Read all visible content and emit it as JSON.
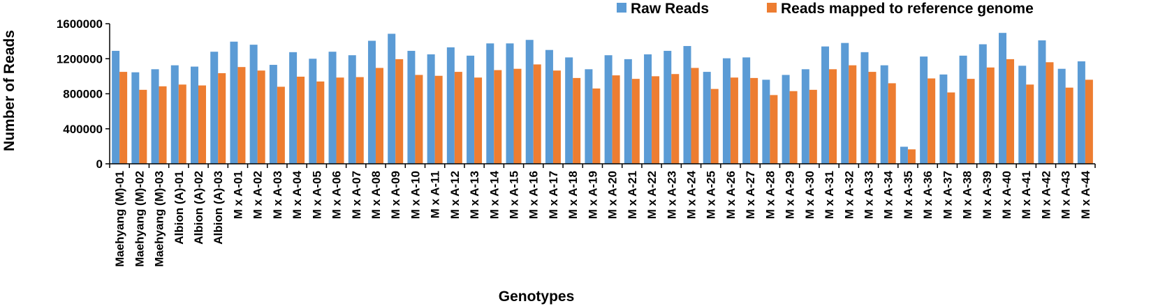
{
  "chart_data": {
    "type": "bar",
    "title": "",
    "xlabel": "Genotypes",
    "ylabel": "Number of Reads",
    "ylim": [
      0,
      1600000
    ],
    "yticks": [
      0,
      400000,
      800000,
      1200000,
      1600000
    ],
    "ytick_labels": [
      "0",
      "400000",
      "800000",
      "1200000",
      "1600000"
    ],
    "grid": false,
    "legend_position": "top-right",
    "categories": [
      "Maehyang (M)-01",
      "Maehyang (M)-02",
      "Maehyang (M)-03",
      "Albion (A)-01",
      "Albion (A)-02",
      "Albion (A)-03",
      "M x A-01",
      "M x A-02",
      "M x A-03",
      "M x A-04",
      "M x A-05",
      "M x A-06",
      "M x A-07",
      "M x A-08",
      "M x A-09",
      "M x A-10",
      "M x A-11",
      "M x A-12",
      "M x A-13",
      "M x A-14",
      "M x A-15",
      "M x A-16",
      "M x A-17",
      "M x A-18",
      "M x A-19",
      "M x A-20",
      "M x A-21",
      "M x A-22",
      "M x A-23",
      "M x A-24",
      "M x A-25",
      "M x A-26",
      "M x A-27",
      "M x A-28",
      "M x A-29",
      "M x A-30",
      "M x A-31",
      "M x A-32",
      "M x A-33",
      "M x A-34",
      "M x A-35",
      "M x A-36",
      "M x A-37",
      "M x A-38",
      "M x A-39",
      "M x A-40",
      "M x A-41",
      "M x A-42",
      "M x A-43",
      "M x A-44"
    ],
    "series": [
      {
        "name": "Raw Reads",
        "color": "#5B9BD5",
        "values": [
          1290000,
          1045000,
          1080000,
          1125000,
          1110000,
          1280000,
          1395000,
          1360000,
          1130000,
          1275000,
          1200000,
          1280000,
          1240000,
          1405000,
          1485000,
          1290000,
          1250000,
          1330000,
          1235000,
          1375000,
          1375000,
          1415000,
          1300000,
          1215000,
          1080000,
          1240000,
          1195000,
          1250000,
          1290000,
          1345000,
          1050000,
          1205000,
          1215000,
          960000,
          1015000,
          1080000,
          1340000,
          1380000,
          1275000,
          1125000,
          195000,
          1225000,
          1020000,
          1235000,
          1365000,
          1495000,
          1120000,
          1410000,
          1085000,
          1170000
        ]
      },
      {
        "name": "Reads mapped to reference genome",
        "color": "#ED7D31",
        "values": [
          1050000,
          845000,
          885000,
          905000,
          895000,
          1035000,
          1105000,
          1065000,
          880000,
          995000,
          940000,
          985000,
          990000,
          1095000,
          1195000,
          1015000,
          1005000,
          1050000,
          985000,
          1070000,
          1085000,
          1135000,
          1065000,
          980000,
          860000,
          1010000,
          970000,
          1000000,
          1025000,
          1095000,
          855000,
          985000,
          980000,
          785000,
          830000,
          845000,
          1080000,
          1125000,
          1050000,
          920000,
          165000,
          975000,
          815000,
          970000,
          1100000,
          1195000,
          905000,
          1160000,
          870000,
          960000
        ]
      }
    ]
  }
}
